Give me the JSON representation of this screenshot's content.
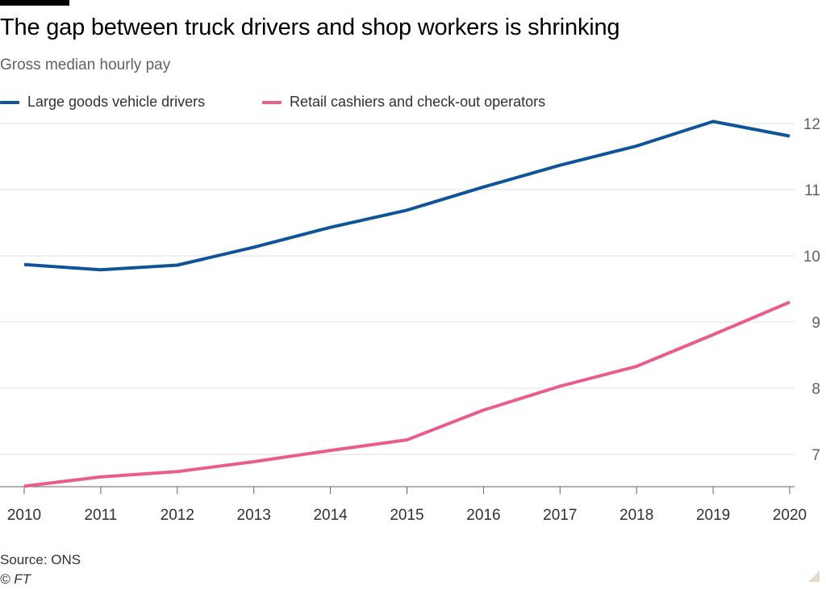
{
  "header": {
    "title": "The gap between truck drivers and shop workers is shrinking",
    "subtitle": "Gross median hourly pay"
  },
  "legend": {
    "items": [
      {
        "label": "Large goods vehicle drivers",
        "color": "#0f5499"
      },
      {
        "label": "Retail cashiers and check-out operators",
        "color": "#e95d8c"
      }
    ]
  },
  "footer": {
    "source": "Source: ONS",
    "copyright": "© FT"
  },
  "chart_data": {
    "type": "line",
    "title": "The gap between truck drivers and shop workers is shrinking",
    "subtitle": "Gross median hourly pay",
    "x": [
      2010,
      2011,
      2012,
      2013,
      2014,
      2015,
      2016,
      2017,
      2018,
      2019,
      2020
    ],
    "series": [
      {
        "name": "Large goods vehicle drivers",
        "color": "#0f5499",
        "values": [
          9.87,
          9.79,
          9.86,
          10.13,
          10.43,
          10.69,
          11.04,
          11.37,
          11.66,
          12.03,
          11.81
        ]
      },
      {
        "name": "Retail cashiers and check-out operators",
        "color": "#e95d8c",
        "values": [
          6.52,
          6.66,
          6.74,
          6.89,
          7.06,
          7.22,
          7.67,
          8.03,
          8.33,
          8.81,
          9.3
        ]
      }
    ],
    "yticks": [
      7,
      8,
      9,
      10,
      11,
      12
    ],
    "xticks": [
      "2010",
      "2011",
      "2012",
      "2013",
      "2014",
      "2015",
      "2016",
      "2017",
      "2018",
      "2019",
      "2020"
    ],
    "ylim": [
      6.5,
      12.2
    ],
    "y_axis_position": "right",
    "grid": true,
    "legend_position": "top-left"
  }
}
